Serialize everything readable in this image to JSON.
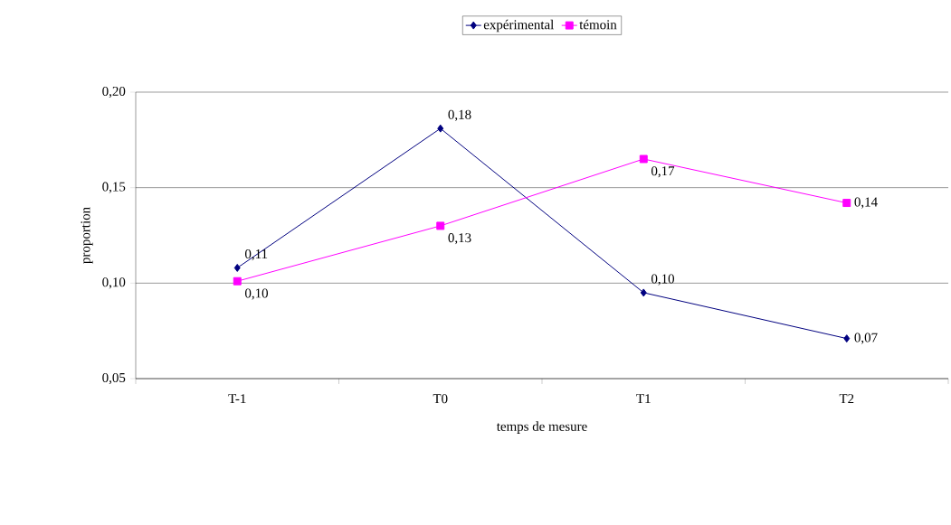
{
  "chart_data": {
    "type": "line",
    "xlabel": "temps de mesure",
    "ylabel": "proportion",
    "categories": [
      "T-1",
      "T0",
      "T1",
      "T2"
    ],
    "series": [
      {
        "name": "expérimental",
        "color": "#000080",
        "marker": "diamond",
        "values": [
          0.108,
          0.181,
          0.095,
          0.071
        ],
        "value_labels": [
          "0,11",
          "0,18",
          "0,10",
          "0,07"
        ]
      },
      {
        "name": "témoin",
        "color": "#ff00ff",
        "marker": "square",
        "values": [
          0.101,
          0.13,
          0.165,
          0.142
        ],
        "value_labels": [
          "0,10",
          "0,13",
          "0,17",
          "0,14"
        ]
      }
    ],
    "ylim": [
      0.05,
      0.2
    ],
    "yticks": [
      {
        "value": 0.05,
        "label": "0,05"
      },
      {
        "value": 0.1,
        "label": "0,10"
      },
      {
        "value": 0.15,
        "label": "0,15"
      },
      {
        "value": 0.2,
        "label": "0,20"
      }
    ],
    "grid": "y",
    "legend": "top"
  }
}
